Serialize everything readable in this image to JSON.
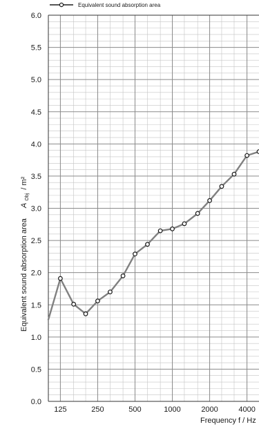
{
  "chart_data": {
    "type": "line",
    "title": "",
    "xlabel": "Frequency  f / Hz",
    "ylabel": "Equivalent sound absorption area",
    "ylabel_symbol": "A",
    "ylabel_subscript": "Obj",
    "ylabel_unit": "/ m²",
    "x_scale": "log",
    "x_ticks": [
      125,
      250,
      500,
      1000,
      2000,
      4000
    ],
    "x_tick_labels": [
      "125",
      "250",
      "500",
      "1000",
      "2000",
      "4000"
    ],
    "y_ticks": [
      0.0,
      0.5,
      1.0,
      1.5,
      2.0,
      2.5,
      3.0,
      3.5,
      4.0,
      4.5,
      5.0,
      5.5,
      6.0
    ],
    "y_tick_labels": [
      "0.0",
      "0.5",
      "1.0",
      "1.5",
      "2.0",
      "2.5",
      "3.0",
      "3.5",
      "4.0",
      "4.5",
      "5.0",
      "5.5",
      "6.0"
    ],
    "ylim": [
      0,
      6
    ],
    "grid": true,
    "legend_position": "top-left",
    "series": [
      {
        "name": "Equivalent sound absorption area",
        "color": "#808080",
        "marker": "open-circle",
        "x": [
          100,
          125,
          160,
          200,
          250,
          315,
          400,
          500,
          630,
          800,
          1000,
          1250,
          1600,
          2000,
          2500,
          3150,
          4000,
          5000
        ],
        "y": [
          1.27,
          1.91,
          1.51,
          1.36,
          1.56,
          1.7,
          1.95,
          2.29,
          2.44,
          2.65,
          2.68,
          2.76,
          2.92,
          3.12,
          3.34,
          3.53,
          3.82,
          3.88
        ],
        "marker_shown": [
          false,
          true,
          true,
          true,
          true,
          true,
          true,
          true,
          true,
          true,
          true,
          true,
          true,
          true,
          true,
          true,
          true,
          true
        ]
      }
    ]
  }
}
